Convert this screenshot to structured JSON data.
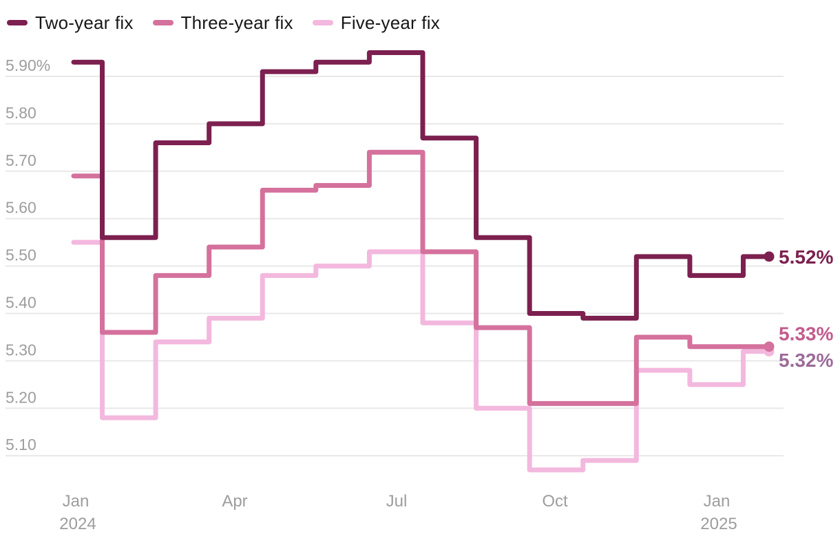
{
  "chart_data": {
    "type": "line",
    "variant": "step-after",
    "title": "",
    "unit": "percent",
    "grid": true,
    "legend_position": "top-left",
    "months": [
      "Jan 2024",
      "Feb 2024",
      "Mar 2024",
      "Apr 2024",
      "May 2024",
      "Jun 2024",
      "Jul 2024",
      "Aug 2024",
      "Sep 2024",
      "Oct 2024",
      "Nov 2024",
      "Dec 2024",
      "Jan 2025",
      "Feb 2025"
    ],
    "x_axis": {
      "ticks": [
        {
          "label": "Jan",
          "sublabel": "2024"
        },
        {
          "label": "Apr",
          "sublabel": ""
        },
        {
          "label": "Jul",
          "sublabel": ""
        },
        {
          "label": "Oct",
          "sublabel": ""
        },
        {
          "label": "Jan",
          "sublabel": "2025"
        }
      ]
    },
    "y_axis": {
      "tick_labels": [
        "5.90%",
        "5.80",
        "5.70",
        "5.60",
        "5.50",
        "5.40",
        "5.30",
        "5.20",
        "5.10"
      ],
      "tick_values": [
        5.9,
        5.8,
        5.7,
        5.6,
        5.5,
        5.4,
        5.3,
        5.2,
        5.1
      ]
    },
    "ylim": [
      5.02,
      5.98
    ],
    "series": [
      {
        "name": "Five-year fix",
        "color": "#f3b8de",
        "end_label": "5.32%",
        "end_label_color": "#9c6b99",
        "values": [
          5.55,
          5.18,
          5.34,
          5.39,
          5.48,
          5.5,
          5.53,
          5.38,
          5.2,
          5.07,
          5.09,
          5.28,
          5.25,
          5.32
        ]
      },
      {
        "name": "Three-year fix",
        "color": "#d4719c",
        "end_label": "5.33%",
        "end_label_color": "#c25b8d",
        "values": [
          5.69,
          5.36,
          5.48,
          5.54,
          5.66,
          5.67,
          5.74,
          5.53,
          5.37,
          5.21,
          5.21,
          5.35,
          5.33,
          5.33
        ]
      },
      {
        "name": "Two-year fix",
        "color": "#7c204f",
        "end_label": "5.52%",
        "end_label_color": "#7c204f",
        "values": [
          5.93,
          5.56,
          5.76,
          5.8,
          5.91,
          5.93,
          5.95,
          5.77,
          5.56,
          5.4,
          5.39,
          5.52,
          5.48,
          5.52
        ]
      }
    ],
    "legend_order": [
      2,
      1,
      0
    ]
  },
  "colors": {
    "background": "#ffffff",
    "grid": "#e8e8e8",
    "axis_text": "#9d9d9d",
    "legend_text": "#171717"
  }
}
